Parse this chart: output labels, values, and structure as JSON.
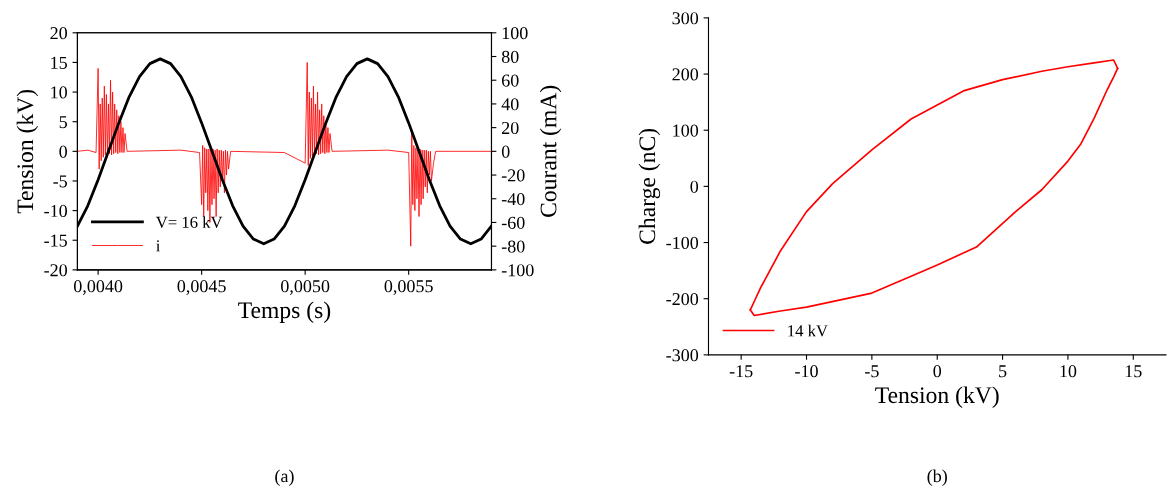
{
  "chart_data": [
    {
      "type": "line",
      "xlabel": "Temps (s)",
      "ylabel": "Tension (kV)",
      "y2label": "Courant (mA)",
      "annotations": [
        "(a)"
      ],
      "xlim": [
        0.0039,
        0.0059
      ],
      "xticks": [
        {
          "value": 0.004,
          "label": "0,0040"
        },
        {
          "value": 0.0045,
          "label": "0,0045"
        },
        {
          "value": 0.005,
          "label": "0,0050"
        },
        {
          "value": 0.0055,
          "label": "0,0055"
        }
      ],
      "ylim": [
        -20,
        20
      ],
      "yticks": [
        -20,
        -15,
        -10,
        -5,
        0,
        5,
        10,
        15,
        20
      ],
      "y2lim": [
        -100,
        100
      ],
      "y2ticks": [
        -100,
        -80,
        -60,
        -40,
        -20,
        0,
        20,
        40,
        60,
        80,
        100
      ],
      "legend": "bottom left",
      "grid": false,
      "series": [
        {
          "name": "V= 16 kV",
          "color": "#000000",
          "x": [
            0.0039,
            0.00395,
            0.004,
            0.00405,
            0.0041,
            0.00415,
            0.0042,
            0.00425,
            0.0043,
            0.00435,
            0.0044,
            0.00445,
            0.0045,
            0.00455,
            0.0046,
            0.00465,
            0.0047,
            0.00475,
            0.0048,
            0.00485,
            0.0049,
            0.00495,
            0.005,
            0.00505,
            0.0051,
            0.00515,
            0.0052,
            0.00525,
            0.0053,
            0.00535,
            0.0054,
            0.00545,
            0.0055,
            0.00555,
            0.0056,
            0.00565,
            0.0057,
            0.00575,
            0.0058,
            0.00585,
            0.0059
          ],
          "values": [
            -12.6,
            -9.2,
            -4.8,
            0,
            4.8,
            9.2,
            12.6,
            14.8,
            15.6,
            14.8,
            12.6,
            9.2,
            4.8,
            0,
            -4.8,
            -9.2,
            -12.6,
            -14.8,
            -15.6,
            -14.8,
            -12.6,
            -9.2,
            -4.8,
            0,
            4.8,
            9.2,
            12.6,
            14.8,
            15.6,
            14.8,
            12.6,
            9.2,
            4.8,
            0,
            -4.8,
            -9.2,
            -12.6,
            -14.8,
            -15.6,
            -14.8,
            -12.6
          ]
        },
        {
          "name": "i",
          "color": "#ff0000",
          "axis": "y2",
          "x": [
            0.0039,
            0.00395,
            0.00399,
            0.004,
            0.004005,
            0.00401,
            0.004015,
            0.00402,
            0.004025,
            0.00403,
            0.004035,
            0.00404,
            0.004045,
            0.00405,
            0.004055,
            0.00406,
            0.004065,
            0.00407,
            0.004075,
            0.00408,
            0.004085,
            0.00409,
            0.004095,
            0.0041,
            0.004105,
            0.00411,
            0.004115,
            0.00412,
            0.004125,
            0.00413,
            0.00414,
            0.0044,
            0.00449,
            0.0045,
            0.004505,
            0.00451,
            0.004515,
            0.00452,
            0.004525,
            0.00453,
            0.004535,
            0.00454,
            0.004545,
            0.00455,
            0.004555,
            0.00456,
            0.004565,
            0.00457,
            0.004575,
            0.00458,
            0.004585,
            0.00459,
            0.004595,
            0.0046,
            0.004605,
            0.00461,
            0.004615,
            0.00462,
            0.004625,
            0.00463,
            0.00464,
            0.0049,
            0.005,
            0.00501,
            0.005015,
            0.00502,
            0.005025,
            0.00503,
            0.005035,
            0.00504,
            0.005045,
            0.00505,
            0.005055,
            0.00506,
            0.005065,
            0.00507,
            0.005075,
            0.00508,
            0.005085,
            0.00509,
            0.005095,
            0.0051,
            0.005105,
            0.00511,
            0.005115,
            0.00512,
            0.00513,
            0.0054,
            0.0055,
            0.00551,
            0.005515,
            0.00552,
            0.005525,
            0.00553,
            0.005535,
            0.00554,
            0.005545,
            0.00555,
            0.005555,
            0.00556,
            0.005565,
            0.00557,
            0.005575,
            0.00558,
            0.005585,
            0.00559,
            0.005595,
            0.0056,
            0.005605,
            0.00561,
            0.00562,
            0.00563,
            0.0059
          ],
          "values": [
            0,
            1,
            -1,
            70,
            -15,
            40,
            -8,
            45,
            -5,
            55,
            -3,
            48,
            -4,
            40,
            -2,
            60,
            -3,
            50,
            -2,
            40,
            -1,
            35,
            -2,
            30,
            -1,
            25,
            -1,
            20,
            -1,
            15,
            0,
            1,
            -1,
            -45,
            5,
            -55,
            3,
            -35,
            2,
            -50,
            2,
            -60,
            3,
            -45,
            2,
            -40,
            1,
            -55,
            2,
            -35,
            1,
            -30,
            1,
            -25,
            0,
            -35,
            1,
            -20,
            0,
            -15,
            0,
            -1,
            -10,
            75,
            -12,
            50,
            -6,
            45,
            -4,
            55,
            -3,
            40,
            -2,
            50,
            -3,
            35,
            -2,
            40,
            -1,
            30,
            -2,
            25,
            -1,
            20,
            -1,
            15,
            0,
            1,
            -1,
            -80,
            15,
            -45,
            5,
            -50,
            3,
            -40,
            2,
            -55,
            2,
            -45,
            1,
            -40,
            1,
            -30,
            1,
            -35,
            0,
            -20,
            0,
            -25,
            -10,
            0,
            0
          ]
        }
      ]
    },
    {
      "type": "line",
      "xlabel": "Tension (kV)",
      "ylabel": "Charge (nC)",
      "annotations": [
        "(b)"
      ],
      "xlim": [
        -17.5,
        17.5
      ],
      "xticks": [
        -15,
        -10,
        -5,
        0,
        5,
        10,
        15
      ],
      "ylim": [
        -300,
        300
      ],
      "yticks": [
        -300,
        -200,
        -100,
        0,
        100,
        200,
        300
      ],
      "legend": "bottom left",
      "grid": false,
      "series": [
        {
          "name": "14 kV",
          "color": "#ff0000",
          "x": [
            -14.3,
            -14,
            -13.5,
            -12,
            -10,
            -8,
            -5,
            -2,
            0,
            2,
            5,
            8,
            10,
            12,
            13.5,
            13.8
          ],
          "values": [
            -220,
            -205,
            -180,
            -115,
            -45,
            5,
            65,
            120,
            145,
            170,
            190,
            205,
            213,
            220,
            225,
            210
          ]
        },
        {
          "color": "#ff0000",
          "x": [
            -14.3,
            -14,
            -12,
            -10,
            -5,
            -2,
            0,
            3,
            6,
            8,
            10,
            11,
            12,
            13,
            13.5,
            13.8
          ],
          "values": [
            -220,
            -230,
            -222,
            -215,
            -190,
            -160,
            -140,
            -108,
            -45,
            -6,
            45,
            76,
            121,
            172,
            195,
            210
          ]
        }
      ]
    }
  ]
}
